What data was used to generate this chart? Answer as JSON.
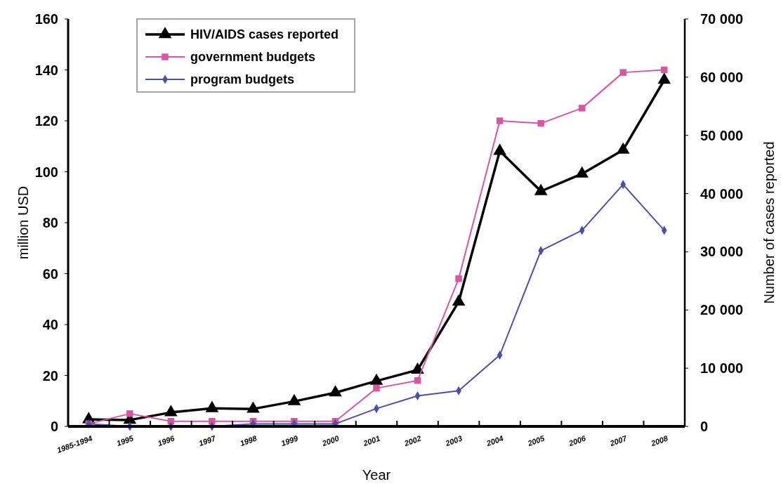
{
  "chart_data": {
    "type": "line",
    "xlabel": "Year",
    "ylabel": "million USD",
    "y2label": "Number of cases reported",
    "categories": [
      "1985-1994",
      "1995",
      "1996",
      "1997",
      "1998",
      "1999",
      "2000",
      "2001",
      "2002",
      "2003",
      "2004",
      "2005",
      "2006",
      "2007",
      "2008"
    ],
    "series": [
      {
        "name": "HIV/AIDS cases reported",
        "color": "#000000",
        "marker": "triangle",
        "axis": "y2",
        "values": [
          1200,
          1100,
          2400,
          3100,
          3000,
          4300,
          5800,
          7800,
          9700,
          21400,
          47300,
          40400,
          43400,
          47500,
          59500
        ]
      },
      {
        "name": "government budgets",
        "color": "#d9559f",
        "marker": "square",
        "values": [
          1,
          5,
          2,
          2,
          2,
          2,
          2,
          15,
          18,
          58,
          120,
          119,
          125,
          139,
          140
        ]
      },
      {
        "name": "program budgets",
        "color": "#4a4fa8",
        "marker": "diamond",
        "values": [
          1,
          0,
          0,
          0,
          1,
          1,
          1,
          7,
          12,
          14,
          28,
          69,
          77,
          95,
          77
        ]
      }
    ],
    "ylim": [
      0,
      160
    ],
    "yticks": [
      0,
      20,
      40,
      60,
      80,
      100,
      120,
      140,
      160
    ],
    "y2lim": [
      0,
      70000
    ],
    "y2ticks": [
      {
        "value": 0,
        "label": "0"
      },
      {
        "value": 10000,
        "label": "10 000"
      },
      {
        "value": 20000,
        "label": "20 000"
      },
      {
        "value": 30000,
        "label": "30 000"
      },
      {
        "value": 40000,
        "label": "40 000"
      },
      {
        "value": 50000,
        "label": "50 000"
      },
      {
        "value": 60000,
        "label": "60 000"
      },
      {
        "value": 70000,
        "label": "70 000"
      }
    ],
    "grid": false,
    "legend": "top left",
    "line_style": "solid"
  }
}
